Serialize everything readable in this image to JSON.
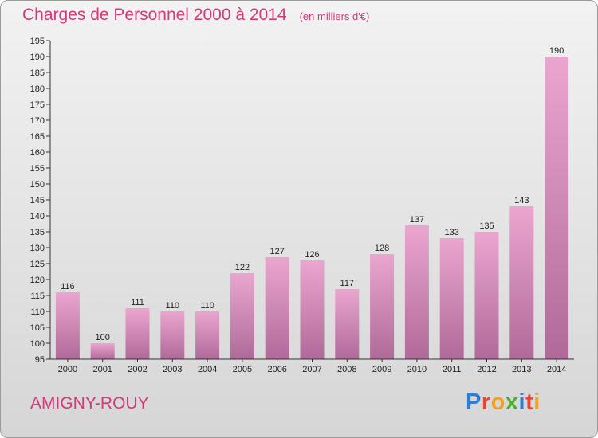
{
  "header": {
    "title": "Charges de Personnel 2000 à 2014",
    "subtitle": "(en milliers d'€)"
  },
  "footer": {
    "commune": "AMIGNY-ROUY",
    "logo_text": "Proxiti"
  },
  "colors": {
    "title": "#d23a7a",
    "bar_top": "#eaa6cf",
    "bar_bottom": "#b06a9a"
  },
  "chart_data": {
    "type": "bar",
    "title": "Charges de Personnel 2000 à 2014",
    "categories": [
      "2000",
      "2001",
      "2002",
      "2003",
      "2004",
      "2005",
      "2006",
      "2007",
      "2008",
      "2009",
      "2010",
      "2011",
      "2012",
      "2013",
      "2014"
    ],
    "values": [
      116,
      100,
      111,
      110,
      110,
      122,
      127,
      126,
      117,
      128,
      137,
      133,
      135,
      143,
      190
    ],
    "ylim": [
      95,
      195
    ],
    "yticks": [
      95,
      100,
      105,
      110,
      115,
      120,
      125,
      130,
      135,
      140,
      145,
      150,
      155,
      160,
      165,
      170,
      175,
      180,
      185,
      190,
      195
    ],
    "grid": false
  }
}
